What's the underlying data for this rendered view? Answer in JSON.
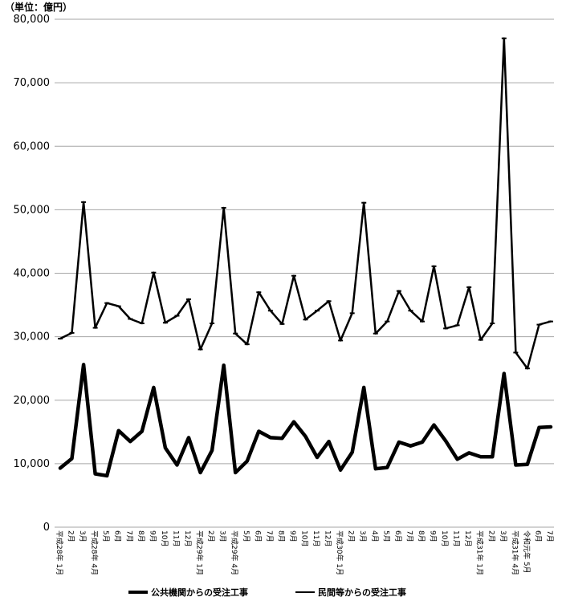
{
  "chart_data": {
    "type": "line",
    "unit_label": "（単位：億円）",
    "y_ticks": [
      "80,000",
      "70,000",
      "60,000",
      "50,000",
      "40,000",
      "30,000",
      "20,000",
      "10,000",
      "0"
    ],
    "ylim": [
      0,
      80000
    ],
    "grid": true,
    "legend_position": "bottom",
    "categories": [
      "平成28年 1月",
      "2月",
      "3月",
      "平成28年 4月",
      "5月",
      "6月",
      "7月",
      "8月",
      "9月",
      "10月",
      "11月",
      "12月",
      "平成29年 1月",
      "2月",
      "3月",
      "平成29年 4月",
      "5月",
      "6月",
      "7月",
      "8月",
      "9月",
      "10月",
      "11月",
      "12月",
      "平成30年 1月",
      "2月",
      "3月",
      "4月",
      "5月",
      "6月",
      "7月",
      "8月",
      "9月",
      "10月",
      "11月",
      "12月",
      "平成31年 1月",
      "2月",
      "3月",
      "平成31年 4月",
      "令和元年 5月",
      "6月",
      "7月"
    ],
    "series": [
      {
        "name": "公共機関からの受注工事",
        "color": "#000000",
        "style": "thick",
        "values": [
          9300,
          10800,
          25600,
          8400,
          8100,
          15200,
          13500,
          15100,
          22000,
          12500,
          9800,
          14100,
          8600,
          12100,
          25500,
          8600,
          10400,
          15100,
          14100,
          14000,
          16600,
          14300,
          11000,
          13500,
          9000,
          11800,
          22000,
          9200,
          9400,
          13400,
          12800,
          13400,
          16100,
          13600,
          10700,
          11700,
          11100,
          11100,
          24200,
          9800,
          9900,
          15700,
          15800
        ]
      },
      {
        "name": "民間等からの受注工事",
        "color": "#000000",
        "style": "thin",
        "values": [
          29700,
          30600,
          51200,
          31400,
          35300,
          34800,
          32800,
          32100,
          40100,
          32200,
          33300,
          35900,
          28000,
          32100,
          50300,
          30500,
          28800,
          37000,
          34100,
          32000,
          39600,
          32700,
          34100,
          35600,
          29400,
          33700,
          51100,
          30500,
          32400,
          37200,
          34100,
          32400,
          41100,
          31300,
          31800,
          37800,
          29500,
          32100,
          77000,
          27500,
          25000,
          31900,
          32400
        ]
      }
    ]
  },
  "legend": {
    "item1": "公共機関からの受注工事",
    "item2": "民間等からの受注工事"
  }
}
